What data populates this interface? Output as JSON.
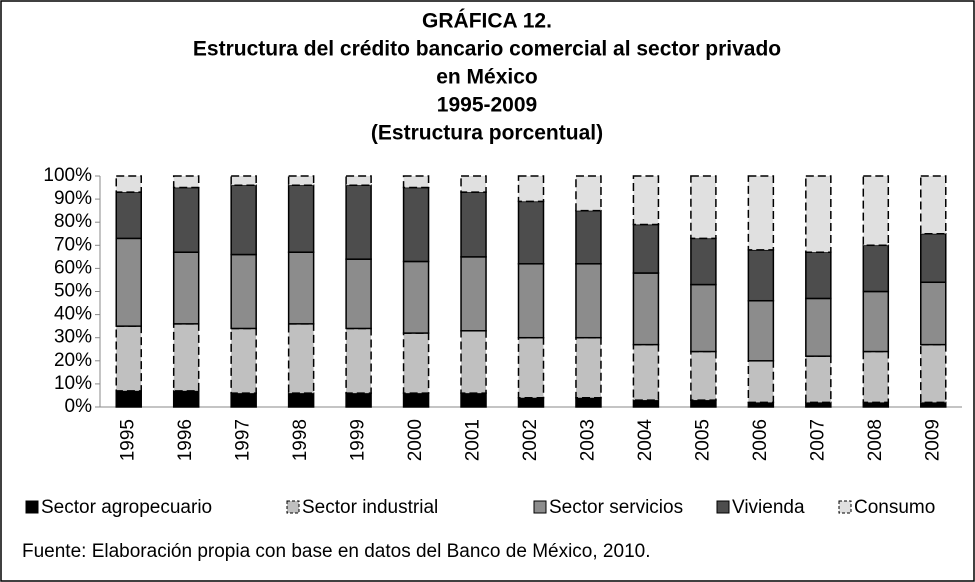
{
  "chart_data": {
    "type": "stacked_bar",
    "title": [
      "GRÁFICA 12.",
      "Estructura del crédito bancario comercial al sector privado",
      "en México",
      "1995-2009",
      "(Estructura porcentual)"
    ],
    "categories": [
      "1995",
      "1996",
      "1997",
      "1998",
      "1999",
      "2000",
      "2001",
      "2002",
      "2003",
      "2004",
      "2005",
      "2006",
      "2007",
      "2008",
      "2009"
    ],
    "series": [
      {
        "name": "Sector agropecuario",
        "color": "#000000",
        "values": [
          7,
          7,
          6,
          6,
          6,
          6,
          6,
          4,
          4,
          3,
          3,
          2,
          2,
          2,
          2
        ]
      },
      {
        "name": "Sector industrial",
        "color": "#c0c0c0",
        "values": [
          28,
          29,
          28,
          30,
          28,
          26,
          27,
          26,
          26,
          24,
          21,
          18,
          20,
          22,
          25
        ]
      },
      {
        "name": "Sector servicios",
        "color": "#8c8c8c",
        "values": [
          38,
          31,
          32,
          31,
          30,
          31,
          32,
          32,
          32,
          31,
          29,
          26,
          25,
          26,
          27
        ]
      },
      {
        "name": "Vivienda",
        "color": "#4d4d4d",
        "values": [
          20,
          28,
          30,
          29,
          32,
          32,
          28,
          27,
          23,
          21,
          20,
          22,
          20,
          20,
          21
        ]
      },
      {
        "name": "Consumo",
        "color": "#e0e0e0",
        "values": [
          7,
          5,
          4,
          4,
          4,
          5,
          7,
          11,
          15,
          21,
          27,
          32,
          33,
          30,
          25
        ]
      }
    ],
    "ylim": [
      0,
      100
    ],
    "yticks": [
      {
        "value": 0,
        "label": "0%"
      },
      {
        "value": 10,
        "label": "10%"
      },
      {
        "value": 20,
        "label": "20%"
      },
      {
        "value": 30,
        "label": "30%"
      },
      {
        "value": 40,
        "label": "40%"
      },
      {
        "value": 50,
        "label": "50%"
      },
      {
        "value": 60,
        "label": "60%"
      },
      {
        "value": 70,
        "label": "70%"
      },
      {
        "value": 80,
        "label": "80%"
      },
      {
        "value": 90,
        "label": "90%"
      },
      {
        "value": 100,
        "label": "100%"
      }
    ],
    "source": "Fuente: Elaboración propia con base en datos del Banco de México, 2010."
  }
}
